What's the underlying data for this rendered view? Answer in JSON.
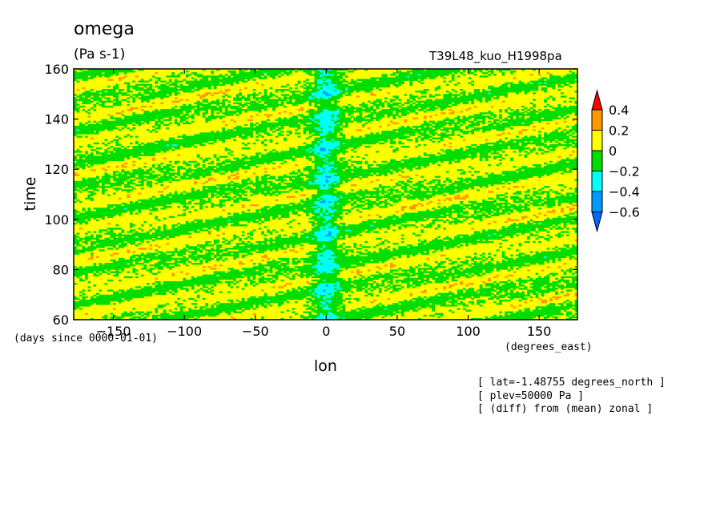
{
  "header": {
    "variable": "omega",
    "units": "(Pa s-1)",
    "run_name": "T39L48_kuo_H1998pa"
  },
  "axis_notes": {
    "time_units": "(days since 0000-01-01)",
    "lon_units": "(degrees_east)"
  },
  "info_lines": [
    "[ lat=-1.48755 degrees_north ]",
    "[ plev=50000 Pa ]",
    "[ (diff) from (mean) zonal ]"
  ],
  "chart_data": {
    "type": "heatmap",
    "title": "omega",
    "units": "(Pa s-1)",
    "xlabel": "lon",
    "ylabel": "time",
    "x_units": "(degrees_east)",
    "y_units": "(days since 0000-01-01)",
    "xlim": [
      -178,
      177
    ],
    "ylim": [
      60,
      160
    ],
    "x_ticks": [
      -150,
      -100,
      -50,
      0,
      50,
      100,
      150
    ],
    "y_ticks": [
      60,
      80,
      100,
      120,
      140,
      160
    ],
    "grid": false,
    "colorbar": {
      "position": "right",
      "boundaries": [
        -0.6,
        -0.4,
        -0.2,
        0,
        0.2,
        0.4
      ],
      "labels": [
        "0.4",
        "0.2",
        "0",
        "-0.2",
        "-0.4",
        "-0.6"
      ],
      "colors_low_to_high": [
        "#0066ff",
        "#0099ff",
        "#00ffff",
        "#00dd00",
        "#ffff00",
        "#ff9900",
        "#ff0000"
      ]
    },
    "field_description": {
      "dominant_range": [
        -0.2,
        0.2
      ],
      "negative_band_lon": 0,
      "negative_band_values": [
        -0.6,
        -0.2
      ],
      "eastward_propagating_streaks": true
    }
  }
}
